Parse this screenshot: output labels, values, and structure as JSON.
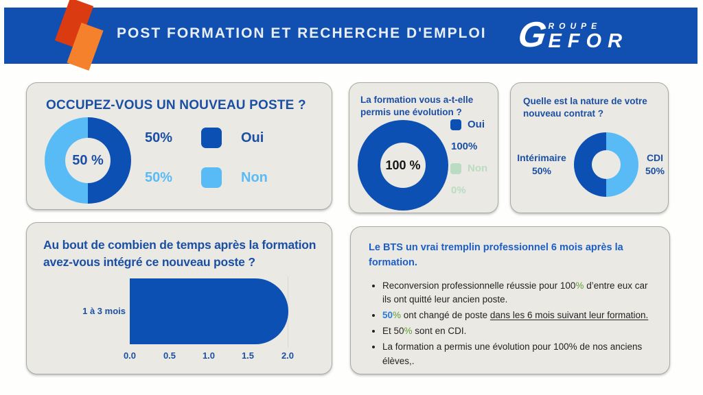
{
  "header": {
    "title": "POST FORMATION ET RECHERCHE D'EMPLOI",
    "logo": {
      "g": "G",
      "top": "ROUPE",
      "bottom": "EFOR"
    }
  },
  "colors": {
    "header_blue": "#1150b0",
    "dark_blue": "#0b50b2",
    "light_blue": "#58bbf6",
    "title_blue": "#1b4fa3",
    "summary_title_blue": "#1d5ec7",
    "pale_green": "#b9dcc2",
    "accent_green": "#5f9e33",
    "accent_blue": "#2a7ad8",
    "deco_red": "#da3b10",
    "deco_orange": "#f5812d",
    "card_bg": "#eae9e4"
  },
  "q1": {
    "title": "OCCUPEZ-VOUS UN NOUVEAU POSTE ?",
    "center_label": "50 %",
    "legend": [
      {
        "pct": "50%",
        "label": "Oui"
      },
      {
        "pct": "50%",
        "label": "Non"
      }
    ]
  },
  "q2": {
    "title": "La formation vous a-t-elle permis une évolution ?",
    "center_label": "100 %",
    "legend": [
      {
        "label": "Oui",
        "pct": "100%"
      },
      {
        "label": "Non",
        "pct": "0%"
      }
    ]
  },
  "q3": {
    "title": "Quelle est la nature de votre nouveau contrat ?",
    "left": {
      "label": "Intérimaire",
      "pct": "50%"
    },
    "right": {
      "label": "CDI",
      "pct": "50%"
    }
  },
  "q4": {
    "title": "Au bout de combien de temps après la formation avez-vous intégré ce nouveau poste ?",
    "bar_label": "1 à 3 mois",
    "ticks": [
      "0.0",
      "0.5",
      "1.0",
      "1.5",
      "2.0"
    ]
  },
  "summary": {
    "title": "Le BTS un vrai tremplin professionnel 6 mois après la formation.",
    "b1_pre": "Reconversion professionnelle réussie pour 100",
    "b1_pct": "%",
    "b1_post": " d’entre eux car ils ont quitté leur ancien poste.",
    "b2_num": "50",
    "b2_pct": "%",
    "b2_mid": " ont changé de poste ",
    "b2_underline": "dans les 6 mois suivant leur formation.",
    "b3_pre": "Et 50",
    "b3_pct": "%",
    "b3_post": " sont en CDI.",
    "b4_text": " La formation a permis une évolution pour 100% de nos anciens élèves,."
  },
  "chart_data": [
    {
      "type": "pie",
      "subtype": "donut",
      "title": "OCCUPEZ-VOUS UN NOUVEAU POSTE ?",
      "labels": [
        "Oui",
        "Non"
      ],
      "values": [
        50,
        50
      ],
      "colors": [
        "#0b50b2",
        "#58bbf6"
      ],
      "center_label": "50 %",
      "legend_position": "right"
    },
    {
      "type": "pie",
      "subtype": "donut",
      "title": "La formation vous a-t-elle permis une évolution ?",
      "labels": [
        "Oui",
        "Non"
      ],
      "values": [
        100,
        0
      ],
      "colors": [
        "#0b50b2",
        "#b9dcc2"
      ],
      "center_label": "100 %",
      "legend_position": "right"
    },
    {
      "type": "pie",
      "subtype": "donut",
      "title": "Quelle est la nature de votre nouveau contrat ?",
      "labels": [
        "Intérimaire",
        "CDI"
      ],
      "values": [
        50,
        50
      ],
      "colors": [
        "#0b50b2",
        "#58bbf6"
      ],
      "legend_position": "sides"
    },
    {
      "type": "bar",
      "orientation": "horizontal",
      "title": "Au bout de combien de temps après la formation avez-vous intégré ce nouveau poste ?",
      "categories": [
        "1 à 3 mois"
      ],
      "values": [
        2.0
      ],
      "xlim": [
        0,
        2.0
      ],
      "xticks": [
        0.0,
        0.5,
        1.0,
        1.5,
        2.0
      ],
      "bar_color": "#0b50b2",
      "grid": false
    }
  ]
}
